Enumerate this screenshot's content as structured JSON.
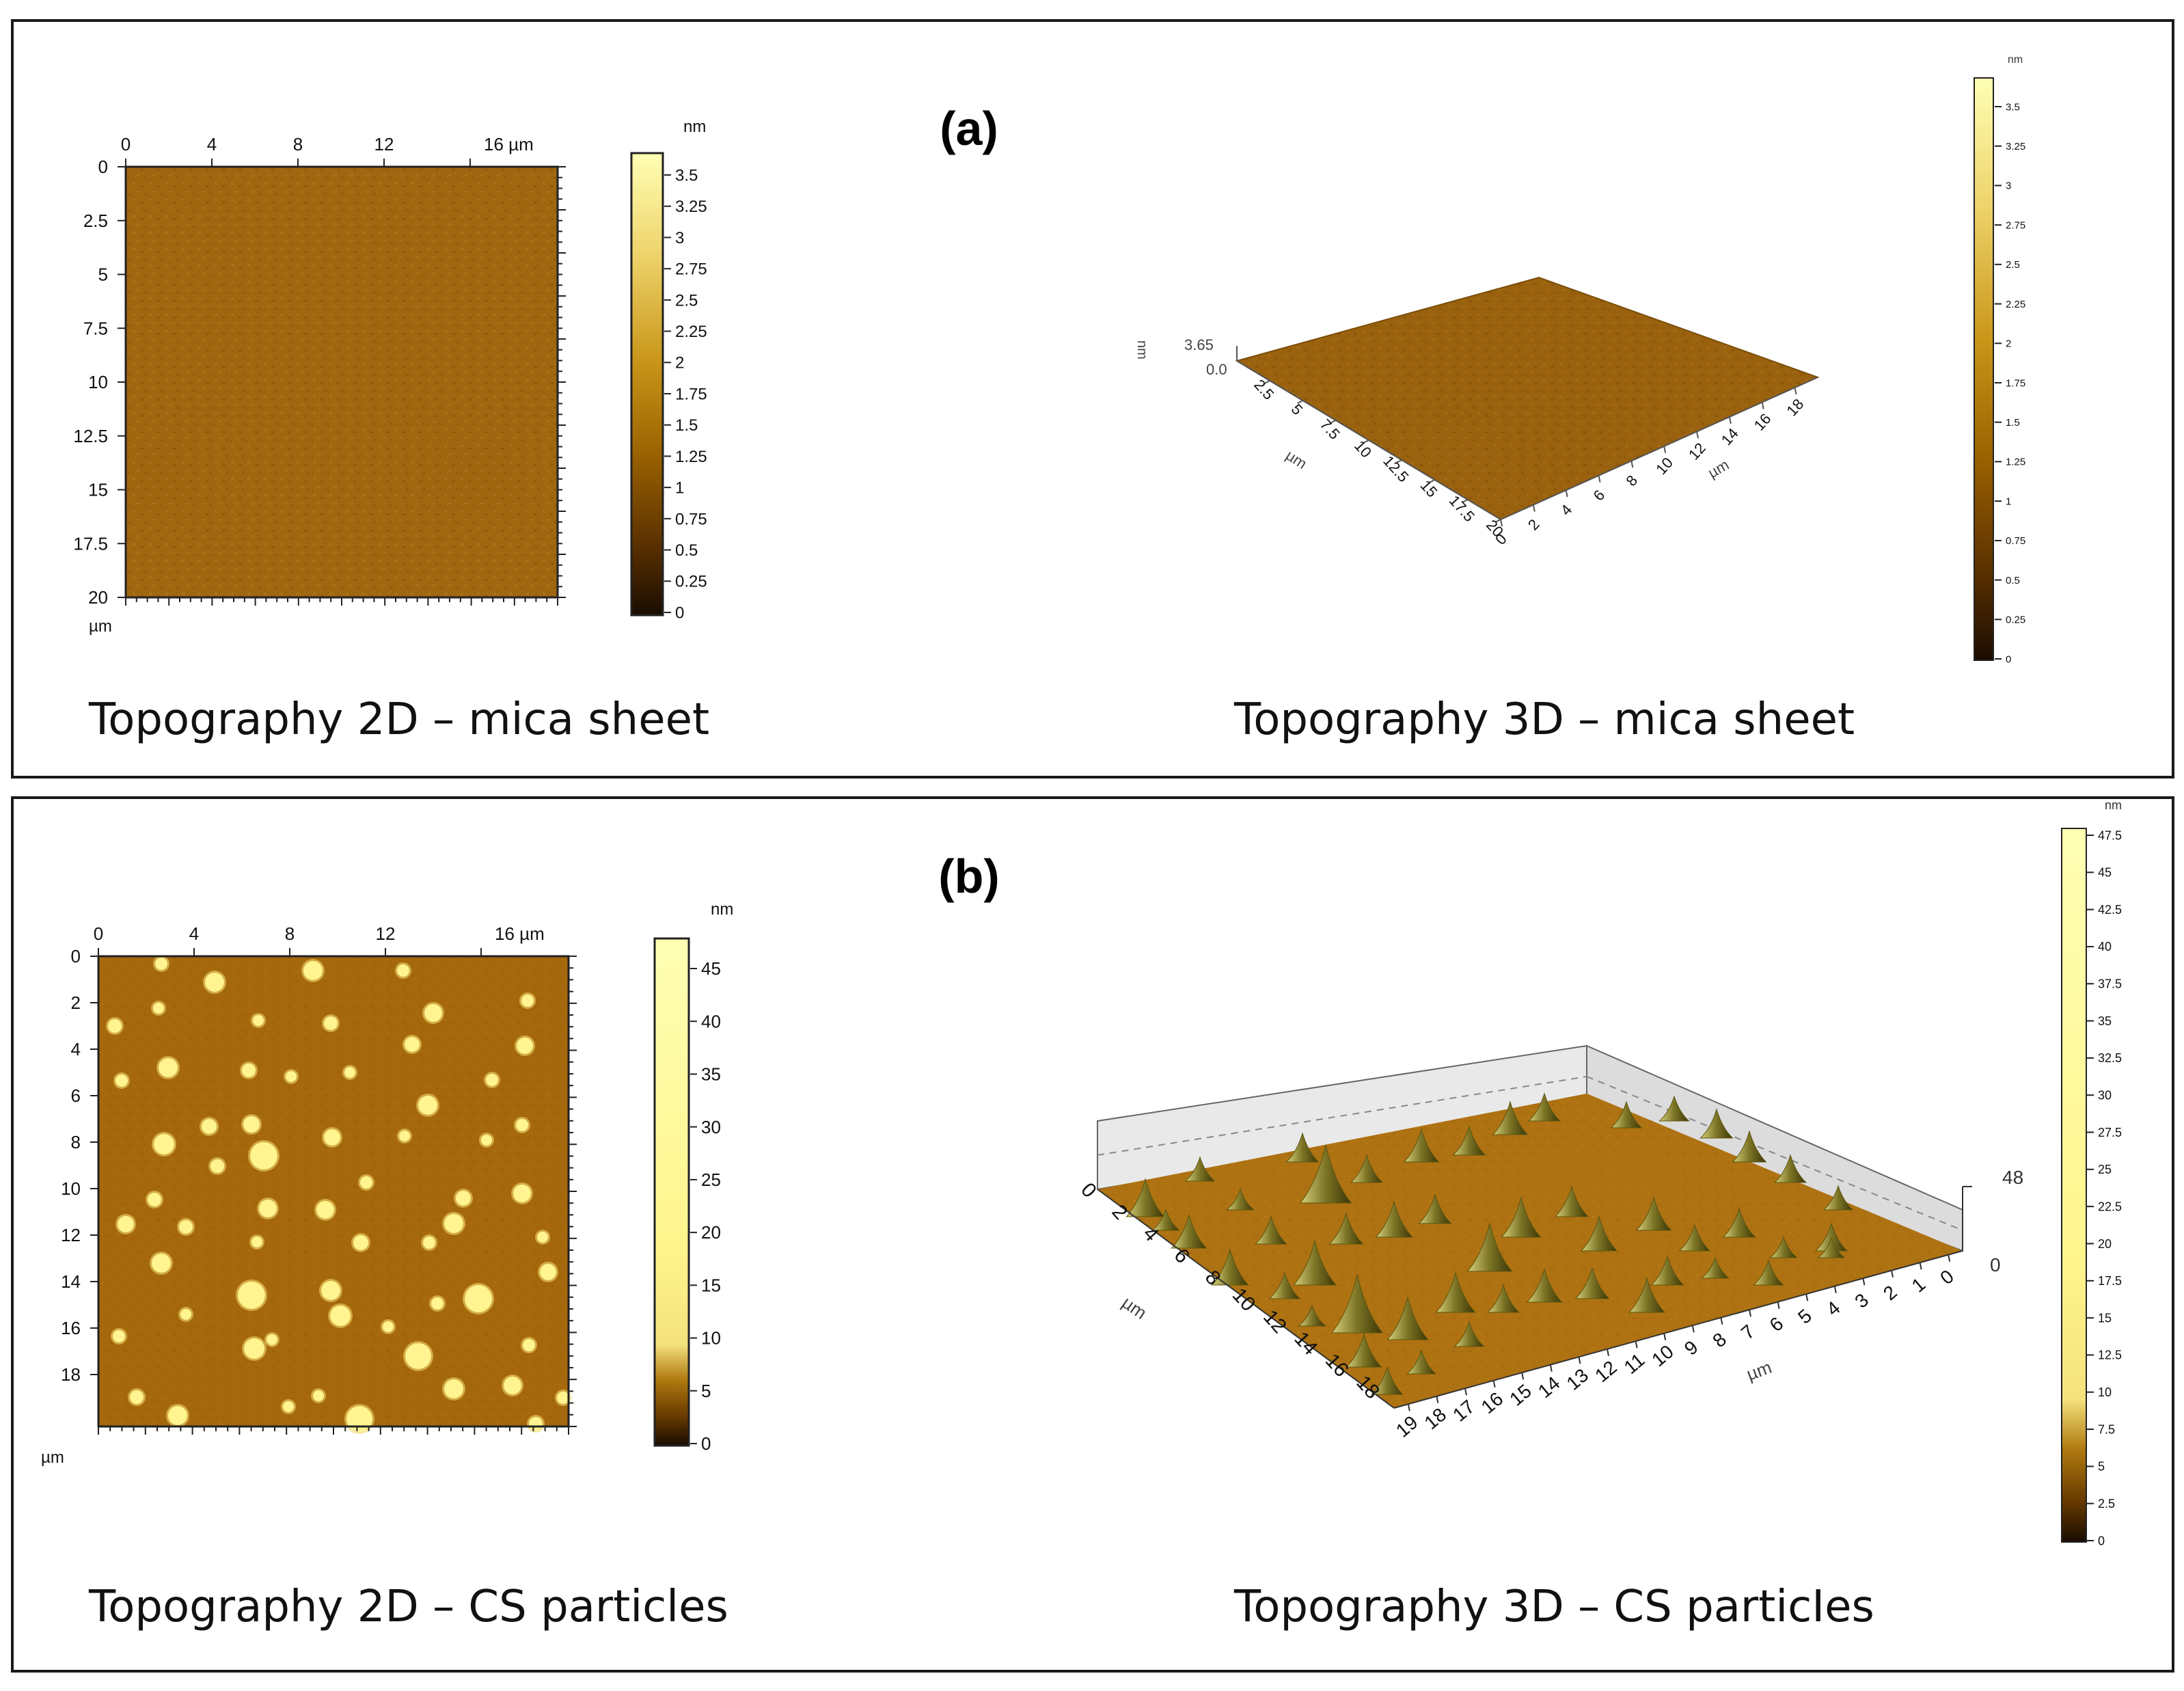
{
  "figure": {
    "panels": [
      {
        "tag": "(a)",
        "left": {
          "caption": "Topography 2D  – mica sheet",
          "x_ticks": [
            "0",
            "4",
            "8",
            "12",
            "16 µm"
          ],
          "y_ticks": [
            "0",
            "2.5",
            "5",
            "7.5",
            "10",
            "12.5",
            "15",
            "17.5",
            "20"
          ],
          "corner_unit": "µm",
          "colorbar": {
            "unit": "nm",
            "ticks": [
              "3.5",
              "3.25",
              "3",
              "2.75",
              "2.5",
              "2.25",
              "2",
              "1.75",
              "1.5",
              "1.25",
              "1",
              "0.75",
              "0.5",
              "0.25",
              "0"
            ]
          }
        },
        "right": {
          "caption": "Topography 3D  – mica sheet",
          "z_unit": "nm",
          "z_max": "3.65",
          "z_min": "0.0",
          "front_left_ticks": [
            "2.5",
            "5",
            "7.5",
            "10",
            "12.5",
            "15",
            "17.5",
            "20"
          ],
          "front_left_unit": "µm",
          "front_right_ticks": [
            "0",
            "2",
            "4",
            "6",
            "8",
            "10",
            "12",
            "14",
            "16",
            "18"
          ],
          "front_right_unit": "µm",
          "colorbar": {
            "unit": "nm",
            "ticks": [
              "3.5",
              "3.25",
              "3",
              "2.75",
              "2.5",
              "2.25",
              "2",
              "1.75",
              "1.5",
              "1.25",
              "1",
              "0.75",
              "0.5",
              "0.25",
              "0"
            ]
          }
        }
      },
      {
        "tag": "(b)",
        "left": {
          "caption": "Topography 2D  – CS particles",
          "x_ticks": [
            "0",
            "4",
            "8",
            "12",
            "16 µm"
          ],
          "y_ticks": [
            "0",
            "2",
            "4",
            "6",
            "8",
            "10",
            "12",
            "14",
            "16",
            "18"
          ],
          "corner_unit": "µm",
          "colorbar": {
            "unit": "nm",
            "ticks": [
              "45",
              "40",
              "35",
              "30",
              "25",
              "20",
              "15",
              "10",
              "5",
              "0"
            ]
          }
        },
        "right": {
          "caption": "Topography 3D  – CS particIes",
          "z_max": "48",
          "z_min": "0",
          "left_axis_ticks": [
            "0",
            "2",
            "4",
            "6",
            "8",
            "10",
            "12",
            "14",
            "16",
            "18"
          ],
          "left_axis_unit": "µm",
          "front_axis_ticks": [
            "19",
            "18",
            "17",
            "16",
            "15",
            "14",
            "13",
            "12",
            "11",
            "10",
            "9",
            "8",
            "7",
            "6",
            "5",
            "4",
            "3",
            "2",
            "1",
            "0"
          ],
          "front_axis_unit": "µm",
          "colorbar": {
            "unit": "nm",
            "ticks": [
              "47.5",
              "45",
              "42.5",
              "40",
              "37.5",
              "35",
              "32.5",
              "30",
              "27.5",
              "25",
              "22.5",
              "20",
              "17.5",
              "15",
              "12.5",
              "10",
              "7.5",
              "5",
              "2.5",
              "0"
            ]
          }
        }
      }
    ]
  }
}
